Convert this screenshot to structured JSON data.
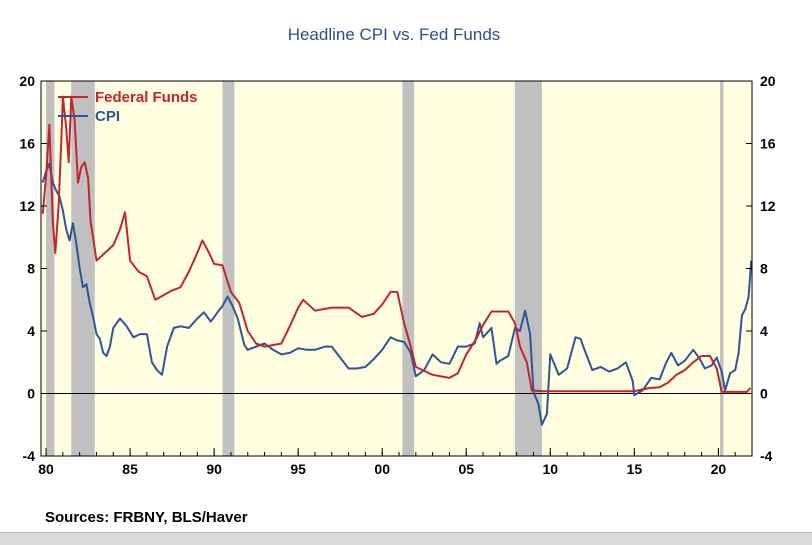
{
  "footer": {
    "sources": "Sources:  FRBNY, BLS/Haver"
  },
  "chart_data": {
    "type": "line",
    "title": "Headline CPI vs. Fed Funds",
    "xlim": [
      1979.7,
      2022.0
    ],
    "ylim": [
      -4,
      20
    ],
    "yticks": [
      -4,
      0,
      4,
      8,
      12,
      16,
      20
    ],
    "ytick_labels": [
      "-4",
      "0",
      "4",
      "8",
      "12",
      "16",
      "20"
    ],
    "xticks": [
      1980,
      1985,
      1990,
      1995,
      2000,
      2005,
      2010,
      2015,
      2020
    ],
    "xtick_labels": [
      "80",
      "85",
      "90",
      "95",
      "00",
      "05",
      "10",
      "15",
      "20"
    ],
    "background_color": "#fffee0",
    "recession_color": "#c0c0c0",
    "recessions": [
      [
        1980.0,
        1980.5
      ],
      [
        1981.5,
        1982.9
      ],
      [
        1990.5,
        1991.2
      ],
      [
        2001.2,
        2001.9
      ],
      [
        2007.9,
        2009.5
      ],
      [
        2020.1,
        2020.3
      ]
    ],
    "legend_position": "top-left",
    "series": [
      {
        "name": "Federal Funds",
        "color": "#c0262d",
        "points": [
          [
            1979.8,
            11.5
          ],
          [
            1980.0,
            13.8
          ],
          [
            1980.2,
            17.2
          ],
          [
            1980.4,
            11.0
          ],
          [
            1980.55,
            9.0
          ],
          [
            1980.75,
            12.0
          ],
          [
            1980.9,
            16.0
          ],
          [
            1981.0,
            19.0
          ],
          [
            1981.2,
            17.0
          ],
          [
            1981.35,
            14.8
          ],
          [
            1981.5,
            19.0
          ],
          [
            1981.7,
            17.5
          ],
          [
            1981.9,
            13.5
          ],
          [
            1982.1,
            14.5
          ],
          [
            1982.3,
            14.8
          ],
          [
            1982.5,
            13.8
          ],
          [
            1982.65,
            11.0
          ],
          [
            1982.8,
            10.0
          ],
          [
            1983.0,
            8.5
          ],
          [
            1983.5,
            9.0
          ],
          [
            1984.0,
            9.5
          ],
          [
            1984.4,
            10.5
          ],
          [
            1984.7,
            11.6
          ],
          [
            1985.0,
            8.5
          ],
          [
            1985.5,
            7.8
          ],
          [
            1986.0,
            7.5
          ],
          [
            1986.5,
            6.0
          ],
          [
            1987.0,
            6.3
          ],
          [
            1987.5,
            6.6
          ],
          [
            1988.0,
            6.8
          ],
          [
            1988.5,
            7.8
          ],
          [
            1989.0,
            9.0
          ],
          [
            1989.3,
            9.8
          ],
          [
            1989.7,
            9.0
          ],
          [
            1990.0,
            8.3
          ],
          [
            1990.5,
            8.2
          ],
          [
            1991.0,
            6.5
          ],
          [
            1991.5,
            5.8
          ],
          [
            1992.0,
            4.0
          ],
          [
            1992.5,
            3.2
          ],
          [
            1993.0,
            3.0
          ],
          [
            1994.0,
            3.2
          ],
          [
            1994.5,
            4.3
          ],
          [
            1995.0,
            5.5
          ],
          [
            1995.3,
            6.0
          ],
          [
            1996.0,
            5.3
          ],
          [
            1997.0,
            5.5
          ],
          [
            1998.0,
            5.5
          ],
          [
            1998.8,
            4.9
          ],
          [
            1999.5,
            5.1
          ],
          [
            2000.0,
            5.7
          ],
          [
            2000.5,
            6.5
          ],
          [
            2000.9,
            6.5
          ],
          [
            2001.3,
            4.5
          ],
          [
            2001.7,
            3.0
          ],
          [
            2002.0,
            1.7
          ],
          [
            2003.0,
            1.2
          ],
          [
            2004.0,
            1.0
          ],
          [
            2004.5,
            1.3
          ],
          [
            2005.0,
            2.5
          ],
          [
            2005.6,
            3.5
          ],
          [
            2006.0,
            4.4
          ],
          [
            2006.5,
            5.25
          ],
          [
            2007.5,
            5.25
          ],
          [
            2007.9,
            4.5
          ],
          [
            2008.2,
            3.0
          ],
          [
            2008.6,
            2.0
          ],
          [
            2008.9,
            0.2
          ],
          [
            2009.5,
            0.15
          ],
          [
            2010.0,
            0.15
          ],
          [
            2015.0,
            0.15
          ],
          [
            2015.9,
            0.35
          ],
          [
            2016.5,
            0.4
          ],
          [
            2017.0,
            0.7
          ],
          [
            2017.5,
            1.2
          ],
          [
            2018.0,
            1.5
          ],
          [
            2018.5,
            2.0
          ],
          [
            2019.0,
            2.4
          ],
          [
            2019.5,
            2.4
          ],
          [
            2019.9,
            1.6
          ],
          [
            2020.2,
            0.1
          ],
          [
            2021.0,
            0.1
          ],
          [
            2021.7,
            0.1
          ],
          [
            2021.9,
            0.35
          ]
        ]
      },
      {
        "name": "CPI",
        "color": "#2d5597",
        "points": [
          [
            1979.8,
            13.5
          ],
          [
            1980.0,
            14.2
          ],
          [
            1980.2,
            14.7
          ],
          [
            1980.4,
            13.5
          ],
          [
            1980.6,
            13.0
          ],
          [
            1980.8,
            12.6
          ],
          [
            1981.0,
            11.7
          ],
          [
            1981.2,
            10.5
          ],
          [
            1981.4,
            9.8
          ],
          [
            1981.6,
            10.9
          ],
          [
            1981.8,
            9.6
          ],
          [
            1982.0,
            8.0
          ],
          [
            1982.2,
            6.8
          ],
          [
            1982.4,
            7.0
          ],
          [
            1982.6,
            5.8
          ],
          [
            1982.8,
            4.9
          ],
          [
            1983.0,
            3.8
          ],
          [
            1983.2,
            3.5
          ],
          [
            1983.4,
            2.6
          ],
          [
            1983.6,
            2.4
          ],
          [
            1983.8,
            3.0
          ],
          [
            1984.0,
            4.2
          ],
          [
            1984.4,
            4.8
          ],
          [
            1984.8,
            4.3
          ],
          [
            1985.2,
            3.6
          ],
          [
            1985.6,
            3.8
          ],
          [
            1986.0,
            3.8
          ],
          [
            1986.3,
            2.0
          ],
          [
            1986.6,
            1.5
          ],
          [
            1986.9,
            1.2
          ],
          [
            1987.2,
            3.0
          ],
          [
            1987.6,
            4.2
          ],
          [
            1988.0,
            4.3
          ],
          [
            1988.5,
            4.2
          ],
          [
            1989.0,
            4.8
          ],
          [
            1989.4,
            5.2
          ],
          [
            1989.8,
            4.6
          ],
          [
            1990.2,
            5.2
          ],
          [
            1990.5,
            5.6
          ],
          [
            1990.8,
            6.2
          ],
          [
            1991.1,
            5.6
          ],
          [
            1991.4,
            4.8
          ],
          [
            1991.8,
            3.1
          ],
          [
            1992.0,
            2.8
          ],
          [
            1992.5,
            3.0
          ],
          [
            1993.0,
            3.2
          ],
          [
            1993.5,
            2.8
          ],
          [
            1994.0,
            2.5
          ],
          [
            1994.5,
            2.6
          ],
          [
            1995.0,
            2.9
          ],
          [
            1995.5,
            2.8
          ],
          [
            1996.0,
            2.8
          ],
          [
            1996.6,
            3.0
          ],
          [
            1997.0,
            3.0
          ],
          [
            1997.5,
            2.3
          ],
          [
            1998.0,
            1.6
          ],
          [
            1998.5,
            1.6
          ],
          [
            1999.0,
            1.7
          ],
          [
            1999.5,
            2.2
          ],
          [
            2000.0,
            2.8
          ],
          [
            2000.5,
            3.6
          ],
          [
            2000.9,
            3.4
          ],
          [
            2001.3,
            3.3
          ],
          [
            2001.7,
            2.6
          ],
          [
            2002.0,
            1.1
          ],
          [
            2002.5,
            1.5
          ],
          [
            2003.0,
            2.5
          ],
          [
            2003.5,
            2.0
          ],
          [
            2004.0,
            1.9
          ],
          [
            2004.5,
            3.0
          ],
          [
            2005.0,
            3.0
          ],
          [
            2005.5,
            3.2
          ],
          [
            2005.8,
            4.5
          ],
          [
            2006.0,
            3.6
          ],
          [
            2006.5,
            4.2
          ],
          [
            2006.8,
            1.9
          ],
          [
            2007.0,
            2.1
          ],
          [
            2007.5,
            2.4
          ],
          [
            2007.9,
            4.2
          ],
          [
            2008.2,
            4.0
          ],
          [
            2008.5,
            5.3
          ],
          [
            2008.8,
            3.8
          ],
          [
            2009.0,
            0.1
          ],
          [
            2009.3,
            -0.7
          ],
          [
            2009.5,
            -2.0
          ],
          [
            2009.8,
            -1.3
          ],
          [
            2010.0,
            2.5
          ],
          [
            2010.5,
            1.2
          ],
          [
            2011.0,
            1.6
          ],
          [
            2011.5,
            3.6
          ],
          [
            2011.8,
            3.5
          ],
          [
            2012.0,
            2.9
          ],
          [
            2012.5,
            1.5
          ],
          [
            2013.0,
            1.7
          ],
          [
            2013.5,
            1.4
          ],
          [
            2014.0,
            1.6
          ],
          [
            2014.5,
            2.0
          ],
          [
            2014.9,
            0.8
          ],
          [
            2015.0,
            -0.1
          ],
          [
            2015.5,
            0.2
          ],
          [
            2016.0,
            1.0
          ],
          [
            2016.5,
            0.9
          ],
          [
            2016.9,
            2.0
          ],
          [
            2017.2,
            2.6
          ],
          [
            2017.6,
            1.8
          ],
          [
            2018.0,
            2.1
          ],
          [
            2018.5,
            2.8
          ],
          [
            2018.9,
            2.2
          ],
          [
            2019.2,
            1.6
          ],
          [
            2019.6,
            1.8
          ],
          [
            2019.9,
            2.3
          ],
          [
            2020.2,
            1.4
          ],
          [
            2020.4,
            0.2
          ],
          [
            2020.7,
            1.3
          ],
          [
            2021.0,
            1.5
          ],
          [
            2021.2,
            2.6
          ],
          [
            2021.4,
            5.0
          ],
          [
            2021.6,
            5.4
          ],
          [
            2021.8,
            6.2
          ],
          [
            2021.95,
            8.5
          ]
        ]
      }
    ]
  }
}
